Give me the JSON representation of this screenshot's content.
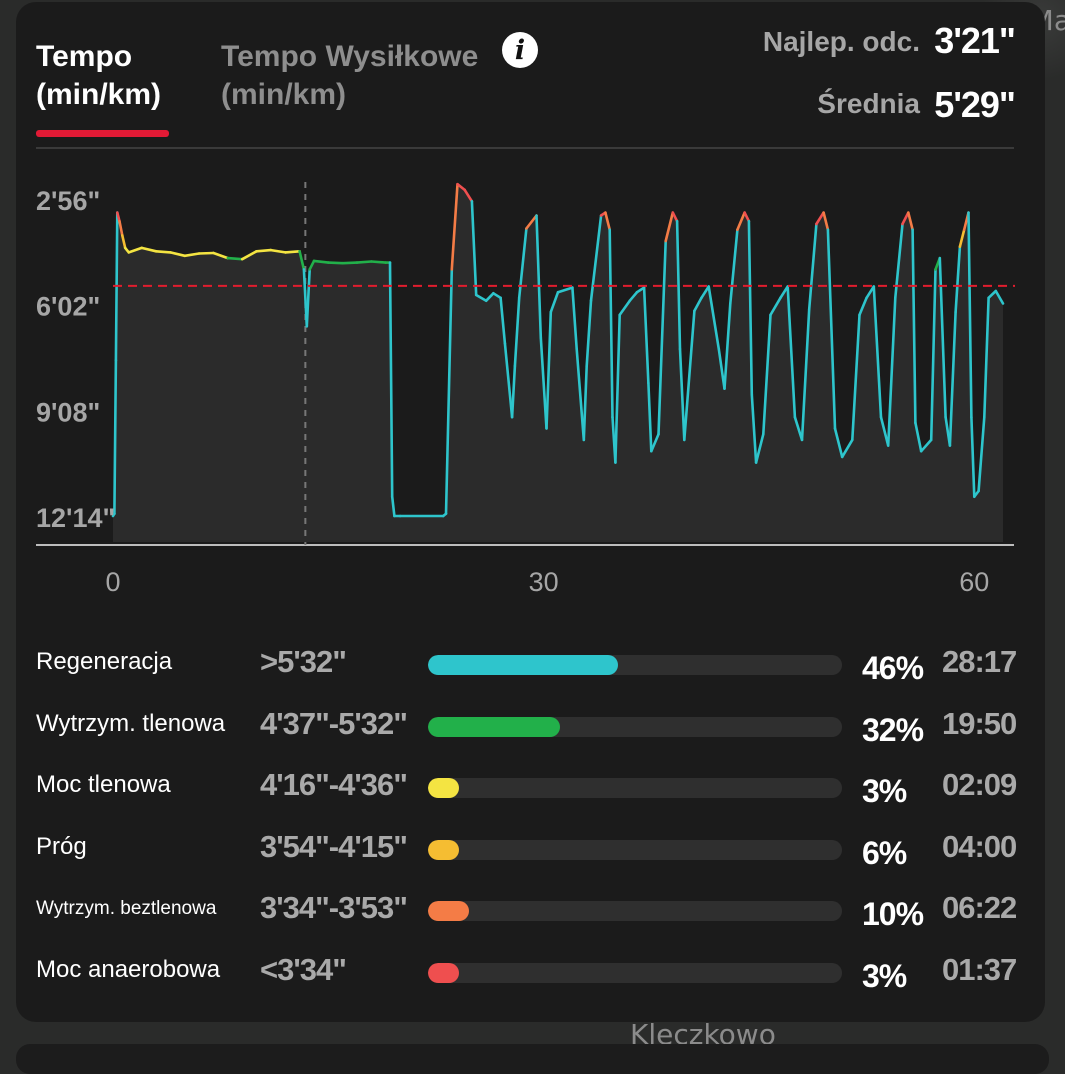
{
  "map": {
    "label_top": "Ma",
    "label_bottom": "Kleczkowo"
  },
  "tabs": [
    {
      "line1": "Tempo",
      "line2": "(min/km)",
      "active": true
    },
    {
      "line1": "Tempo Wysiłkowe",
      "line2": "(min/km)",
      "active": false
    }
  ],
  "info_icon": {
    "icon": "info-icon",
    "glyph": "i"
  },
  "stats": {
    "best_label": "Najlep. odc.",
    "best_value": "3'21\"",
    "avg_label": "Średnia",
    "avg_value": "5'29\""
  },
  "chart_data": {
    "type": "line",
    "y_tick_labels": [
      "2'56\"",
      "6'02\"",
      "9'08\"",
      "12'14\""
    ],
    "y_tick_values_sec": [
      176,
      362,
      548,
      734
    ],
    "y_inverted": true,
    "x_tick_labels": [
      "0",
      "30",
      "60"
    ],
    "x_tick_values": [
      0,
      30,
      60
    ],
    "xlim": [
      0,
      62
    ],
    "average_pace_sec": 329,
    "marker_x": 13.4,
    "colors": {
      "regeneracja": "#2ec5cc",
      "tlenowa": "#22b04a",
      "moc_tlenowa": "#f4e442",
      "prog": "#f5bd32",
      "beztlenowa": "#f47c46",
      "anaerobowa": "#ef4f4f",
      "average_line": "#e11d2e"
    },
    "zone_bounds_sec": [
      332,
      277,
      256,
      234,
      214
    ],
    "points": [
      [
        0.0,
        734
      ],
      [
        0.1,
        730
      ],
      [
        0.2,
        460
      ],
      [
        0.3,
        200
      ],
      [
        0.45,
        215
      ],
      [
        0.65,
        240
      ],
      [
        0.85,
        262
      ],
      [
        1.1,
        270
      ],
      [
        2,
        262
      ],
      [
        3,
        268
      ],
      [
        4,
        270
      ],
      [
        5,
        276
      ],
      [
        6,
        272
      ],
      [
        7,
        271
      ],
      [
        8,
        280
      ],
      [
        9,
        282
      ],
      [
        10,
        268
      ],
      [
        11,
        266
      ],
      [
        12,
        270
      ],
      [
        13,
        268
      ],
      [
        13.3,
        300
      ],
      [
        13.5,
        400
      ],
      [
        13.7,
        300
      ],
      [
        14,
        285
      ],
      [
        15,
        288
      ],
      [
        16,
        289
      ],
      [
        17,
        288
      ],
      [
        18,
        286
      ],
      [
        19,
        288
      ],
      [
        19.3,
        288
      ],
      [
        19.45,
        700
      ],
      [
        19.6,
        734
      ],
      [
        20,
        734
      ],
      [
        23,
        734
      ],
      [
        23.2,
        730
      ],
      [
        23.6,
        300
      ],
      [
        24,
        150
      ],
      [
        24.5,
        160
      ],
      [
        25,
        180
      ],
      [
        25.3,
        345
      ],
      [
        26,
        355
      ],
      [
        26.5,
        342
      ],
      [
        27,
        350
      ],
      [
        27.3,
        430
      ],
      [
        27.8,
        560
      ],
      [
        28,
        470
      ],
      [
        28.3,
        350
      ],
      [
        28.8,
        228
      ],
      [
        29.5,
        205
      ],
      [
        29.8,
        420
      ],
      [
        30.2,
        580
      ],
      [
        30.5,
        375
      ],
      [
        31,
        340
      ],
      [
        32,
        332
      ],
      [
        32.3,
        440
      ],
      [
        32.8,
        600
      ],
      [
        33,
        470
      ],
      [
        33.3,
        355
      ],
      [
        34,
        205
      ],
      [
        34.3,
        200
      ],
      [
        34.6,
        230
      ],
      [
        34.8,
        560
      ],
      [
        35,
        640
      ],
      [
        35.3,
        380
      ],
      [
        36,
        355
      ],
      [
        36.5,
        340
      ],
      [
        37,
        332
      ],
      [
        37.3,
        500
      ],
      [
        37.5,
        620
      ],
      [
        38,
        590
      ],
      [
        38.5,
        250
      ],
      [
        39,
        200
      ],
      [
        39.3,
        215
      ],
      [
        39.5,
        440
      ],
      [
        39.8,
        600
      ],
      [
        40.5,
        373
      ],
      [
        41,
        350
      ],
      [
        41.5,
        330
      ],
      [
        42.2,
        440
      ],
      [
        42.6,
        510
      ],
      [
        43,
        360
      ],
      [
        43.5,
        230
      ],
      [
        44,
        200
      ],
      [
        44.3,
        215
      ],
      [
        44.5,
        520
      ],
      [
        44.8,
        640
      ],
      [
        45.3,
        590
      ],
      [
        45.8,
        380
      ],
      [
        46.5,
        350
      ],
      [
        47,
        330
      ],
      [
        47.5,
        560
      ],
      [
        48,
        600
      ],
      [
        48.5,
        370
      ],
      [
        49,
        220
      ],
      [
        49.5,
        200
      ],
      [
        49.8,
        230
      ],
      [
        50.3,
        580
      ],
      [
        50.8,
        630
      ],
      [
        51.5,
        600
      ],
      [
        52,
        380
      ],
      [
        52.5,
        350
      ],
      [
        53,
        330
      ],
      [
        53.5,
        560
      ],
      [
        54,
        610
      ],
      [
        54.5,
        350
      ],
      [
        55,
        220
      ],
      [
        55.4,
        200
      ],
      [
        55.7,
        230
      ],
      [
        55.9,
        570
      ],
      [
        56.3,
        620
      ],
      [
        57,
        600
      ],
      [
        57.3,
        300
      ],
      [
        57.6,
        280
      ],
      [
        58,
        560
      ],
      [
        58.3,
        610
      ],
      [
        58.7,
        375
      ],
      [
        59,
        260
      ],
      [
        59.3,
        230
      ],
      [
        59.6,
        200
      ],
      [
        59.8,
        560
      ],
      [
        60,
        700
      ],
      [
        60.3,
        690
      ],
      [
        60.7,
        560
      ],
      [
        61,
        350
      ],
      [
        61.5,
        338
      ],
      [
        62,
        360
      ]
    ]
  },
  "zones": [
    {
      "name": "Regeneracja",
      "range": ">5'32\"",
      "percent": "46%",
      "time": "28:17",
      "fraction": 0.46,
      "color": "#2ec5cc",
      "small": false
    },
    {
      "name": "Wytrzym. tlenowa",
      "range": "4'37\"-5'32\"",
      "percent": "32%",
      "time": "19:50",
      "fraction": 0.32,
      "color": "#22b04a",
      "small": false
    },
    {
      "name": "Moc tlenowa",
      "range": "4'16\"-4'36\"",
      "percent": "3%",
      "time": "02:09",
      "fraction": 0.03,
      "color": "#f4e442",
      "small": false
    },
    {
      "name": "Próg",
      "range": "3'54\"-4'15\"",
      "percent": "6%",
      "time": "04:00",
      "fraction": 0.06,
      "color": "#f5bd32",
      "small": false
    },
    {
      "name": "Wytrzym. beztlenowa",
      "range": "3'34\"-3'53\"",
      "percent": "10%",
      "time": "06:22",
      "fraction": 0.1,
      "color": "#f47c46",
      "small": true
    },
    {
      "name": "Moc anaerobowa",
      "range": "<3'34\"",
      "percent": "3%",
      "time": "01:37",
      "fraction": 0.03,
      "color": "#ef4f4f",
      "small": false
    }
  ]
}
